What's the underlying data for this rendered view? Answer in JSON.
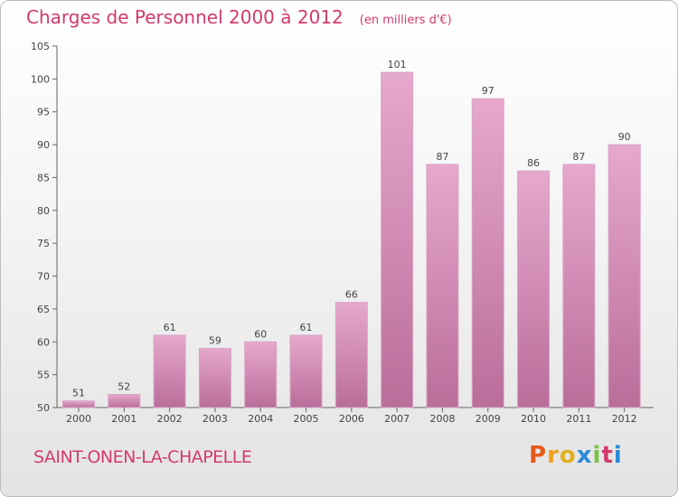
{
  "header": {
    "title": "Charges de Personnel 2000 à 2012",
    "subtitle": "(en milliers d'€)"
  },
  "footer": {
    "commune": "SAINT-ONEN-LA-CHAPELLE",
    "logo_letters": [
      "P",
      "r",
      "o",
      "x",
      "i",
      "t",
      "i"
    ]
  },
  "colors": {
    "title": "#d23a6e",
    "bar_top": "#e6a8cd",
    "bar_bottom": "#b96e9a",
    "logo": [
      "#e85a1a",
      "#f0a020",
      "#e0b020",
      "#2a8ad8",
      "#7ac143",
      "#d23a6e",
      "#2a8ad8"
    ]
  },
  "chart_data": {
    "type": "bar",
    "categories": [
      "2000",
      "2001",
      "2002",
      "2003",
      "2004",
      "2005",
      "2006",
      "2007",
      "2008",
      "2009",
      "2010",
      "2011",
      "2012"
    ],
    "values": [
      51,
      52,
      61,
      59,
      60,
      61,
      66,
      101,
      87,
      97,
      86,
      87,
      90
    ],
    "ylim": [
      50,
      105
    ],
    "yticks": [
      50,
      55,
      60,
      65,
      70,
      75,
      80,
      85,
      90,
      95,
      100,
      105
    ],
    "grid": false,
    "legend": "none"
  }
}
